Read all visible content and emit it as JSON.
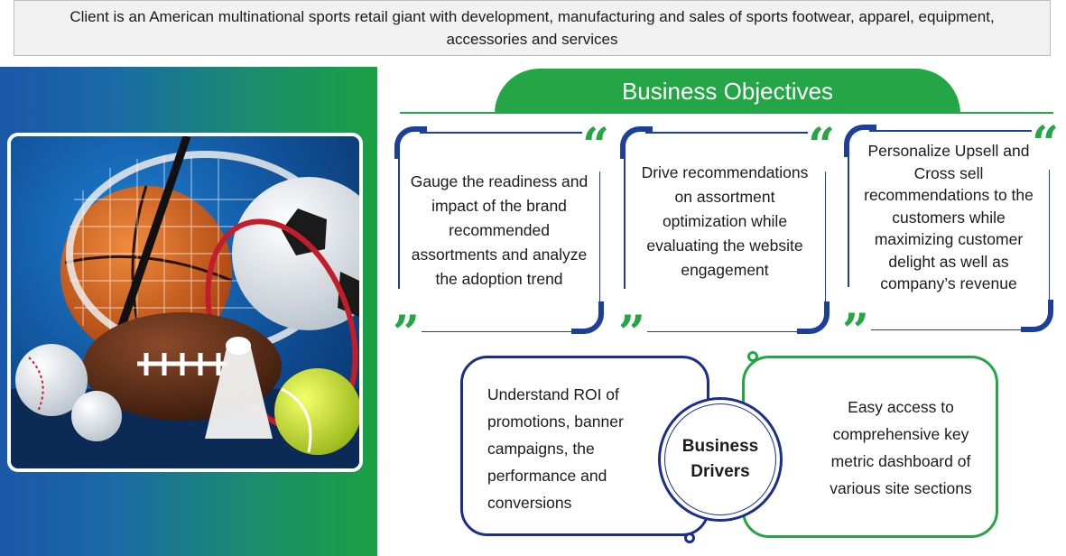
{
  "banner": {
    "text": "Client is an American multinational sports retail giant with development, manufacturing and sales of sports footwear, apparel, equipment, accessories and services"
  },
  "objectives": {
    "title": "Business Objectives",
    "cards": [
      {
        "text": "Gauge the readiness and impact of the brand recommended assortments and analyze the adoption trend"
      },
      {
        "text": "Drive recommendations on assortment optimization while evaluating the website engagement"
      },
      {
        "text": "Personalize Upsell and Cross sell recommendations to the customers while maximizing customer delight as well as company’s revenue"
      }
    ]
  },
  "drivers": {
    "title": "Business Drivers",
    "left_text": "Understand ROI of promotions, banner campaigns, the performance and conversions",
    "right_text": "Easy access to comprehensive key metric dashboard of various site sections"
  },
  "colors": {
    "green": "#24a646",
    "blue": "#1b3f9b",
    "navy": "#1b2f8a"
  },
  "image": {
    "subject": "sports equipment photo: basketball, tennis racquets, soccer ball, american football, golf club, shuttlecock, tennis ball, baseball"
  }
}
